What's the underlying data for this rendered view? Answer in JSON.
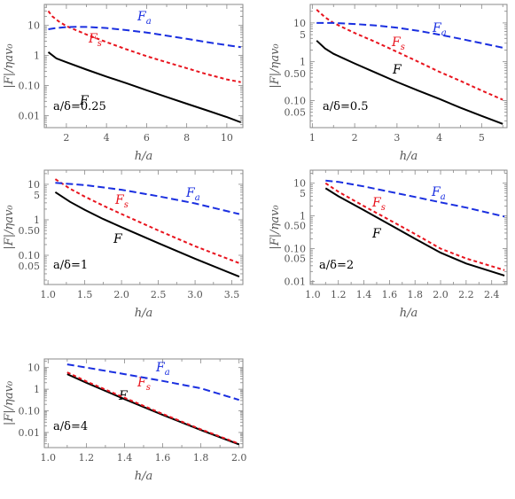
{
  "colors": {
    "F": "#000000",
    "Fs": "#e8141e",
    "Fa": "#1a2fe0",
    "axis": "#888888",
    "text": "#555555"
  },
  "common": {
    "ylabel": "|F|/ηav₀",
    "xlabel": "h/a"
  },
  "chart_data": [
    {
      "type": "line",
      "log_y": true,
      "param_label": "a/δ=0.25",
      "xlim": [
        0.9,
        10.8
      ],
      "ylim": [
        0.004,
        50
      ],
      "xticks": [
        2,
        4,
        6,
        8,
        10
      ],
      "xtick_labels": [
        "2",
        "4",
        "6",
        "8",
        "10"
      ],
      "yticks": [
        0.01,
        0.1,
        1,
        10
      ],
      "ytick_labels": [
        "0.01",
        "0.10",
        "1",
        "10"
      ],
      "series": [
        {
          "name": "F",
          "label": "F",
          "sub": "",
          "x": [
            1.1,
            1.5,
            2,
            3,
            4,
            5,
            6,
            7,
            8,
            9,
            10,
            10.7
          ],
          "y": [
            1.3,
            0.8,
            0.6,
            0.34,
            0.2,
            0.12,
            0.07,
            0.042,
            0.025,
            0.015,
            0.009,
            0.006
          ]
        },
        {
          "name": "Fs",
          "label": "F",
          "sub": "s",
          "x": [
            1.1,
            1.3,
            1.6,
            2,
            3,
            4,
            5,
            6,
            7,
            8,
            9,
            10,
            10.7
          ],
          "y": [
            30,
            20,
            14,
            9.5,
            5,
            2.8,
            1.6,
            0.95,
            0.6,
            0.38,
            0.24,
            0.16,
            0.13
          ]
        },
        {
          "name": "Fa",
          "label": "F",
          "sub": "a",
          "x": [
            1.1,
            1.5,
            2,
            2.5,
            3,
            4,
            5,
            6,
            7,
            8,
            9,
            10,
            10.7
          ],
          "y": [
            7.5,
            8.2,
            8.8,
            9.0,
            8.9,
            8.2,
            7,
            5.8,
            4.6,
            3.6,
            2.8,
            2.2,
            1.9
          ]
        }
      ]
    },
    {
      "type": "line",
      "log_y": true,
      "param_label": "a/δ=0.5",
      "xlim": [
        0.95,
        5.6
      ],
      "ylim": [
        0.02,
        30
      ],
      "xticks": [
        1,
        2,
        3,
        4,
        5
      ],
      "xtick_labels": [
        "1",
        "2",
        "3",
        "4",
        "5"
      ],
      "yticks": [
        0.05,
        0.1,
        0.5,
        1,
        5,
        10
      ],
      "ytick_labels": [
        "0.05",
        "0.10",
        "0.50",
        "1",
        "5",
        "10"
      ],
      "series": [
        {
          "name": "F",
          "label": "F",
          "sub": "",
          "x": [
            1.1,
            1.3,
            1.5,
            2,
            2.5,
            3,
            3.5,
            4,
            4.5,
            5,
            5.5
          ],
          "y": [
            3.5,
            2.2,
            1.6,
            0.9,
            0.52,
            0.3,
            0.18,
            0.11,
            0.065,
            0.04,
            0.025
          ]
        },
        {
          "name": "Fs",
          "label": "F",
          "sub": "s",
          "x": [
            1.1,
            1.3,
            1.5,
            2,
            2.5,
            3,
            3.5,
            4,
            4.5,
            5,
            5.5
          ],
          "y": [
            22,
            14,
            10,
            5.5,
            3.2,
            1.8,
            1.0,
            0.55,
            0.32,
            0.18,
            0.105
          ]
        },
        {
          "name": "Fa",
          "label": "F",
          "sub": "a",
          "x": [
            1.1,
            1.5,
            2,
            2.5,
            3,
            3.5,
            4,
            4.5,
            5,
            5.5
          ],
          "y": [
            10,
            10,
            9.4,
            8.6,
            7.5,
            6.3,
            5.0,
            3.9,
            3.0,
            2.3
          ]
        }
      ]
    },
    {
      "type": "line",
      "log_y": true,
      "param_label": "a/δ=1",
      "xlim": [
        0.95,
        3.65
      ],
      "ylim": [
        0.015,
        25
      ],
      "xticks": [
        1.0,
        1.5,
        2.0,
        2.5,
        3.0,
        3.5
      ],
      "xtick_labels": [
        "1.0",
        "1.5",
        "2.0",
        "2.5",
        "3.0",
        "3.5"
      ],
      "yticks": [
        0.05,
        0.1,
        0.5,
        1,
        5,
        10
      ],
      "ytick_labels": [
        "0.05",
        "0.10",
        "0.50",
        "1",
        "5",
        "10"
      ],
      "series": [
        {
          "name": "F",
          "label": "F",
          "sub": "",
          "x": [
            1.1,
            1.3,
            1.5,
            1.75,
            2,
            2.5,
            3,
            3.6
          ],
          "y": [
            6,
            3.2,
            1.9,
            1.05,
            0.62,
            0.22,
            0.08,
            0.025
          ]
        },
        {
          "name": "Fs",
          "label": "F",
          "sub": "s",
          "x": [
            1.1,
            1.3,
            1.5,
            1.75,
            2,
            2.5,
            3,
            3.6
          ],
          "y": [
            14,
            7.5,
            4.5,
            2.5,
            1.45,
            0.5,
            0.18,
            0.06
          ]
        },
        {
          "name": "Fa",
          "label": "F",
          "sub": "a",
          "x": [
            1.1,
            1.5,
            2,
            2.5,
            3,
            3.6
          ],
          "y": [
            11,
            9.5,
            7,
            4.6,
            2.9,
            1.45
          ]
        }
      ]
    },
    {
      "type": "line",
      "log_y": true,
      "param_label": "a/δ=2",
      "xlim": [
        0.98,
        2.52
      ],
      "ylim": [
        0.008,
        25
      ],
      "xticks": [
        1.0,
        1.2,
        1.4,
        1.6,
        1.8,
        2.0,
        2.2,
        2.4
      ],
      "xtick_labels": [
        "1.0",
        "1.2",
        "1.4",
        "1.6",
        "1.8",
        "2.0",
        "2.2",
        "2.4"
      ],
      "yticks": [
        0.01,
        0.05,
        0.1,
        0.5,
        1,
        5,
        10
      ],
      "ytick_labels": [
        "0.01",
        "0.05",
        "0.10",
        "0.50",
        "1",
        "5",
        "10"
      ],
      "series": [
        {
          "name": "F",
          "label": "F",
          "sub": "",
          "x": [
            1.1,
            1.2,
            1.4,
            1.6,
            1.8,
            2.0,
            2.2,
            2.5
          ],
          "y": [
            7,
            4,
            1.5,
            0.55,
            0.2,
            0.075,
            0.035,
            0.015
          ]
        },
        {
          "name": "Fs",
          "label": "F",
          "sub": "s",
          "x": [
            1.1,
            1.2,
            1.4,
            1.6,
            1.8,
            2.0,
            2.2,
            2.5
          ],
          "y": [
            10,
            5.5,
            2.0,
            0.75,
            0.28,
            0.1,
            0.05,
            0.022
          ]
        },
        {
          "name": "Fa",
          "label": "F",
          "sub": "a",
          "x": [
            1.1,
            1.2,
            1.4,
            1.6,
            1.8,
            2.0,
            2.2,
            2.5
          ],
          "y": [
            12,
            11,
            8,
            5.5,
            3.8,
            2.6,
            1.8,
            0.95
          ]
        }
      ]
    },
    {
      "type": "line",
      "log_y": true,
      "param_label": "a/δ=4",
      "xlim": [
        0.98,
        2.02
      ],
      "ylim": [
        0.002,
        25
      ],
      "xticks": [
        1.0,
        1.2,
        1.4,
        1.6,
        1.8,
        2.0
      ],
      "xtick_labels": [
        "1.0",
        "1.2",
        "1.4",
        "1.6",
        "1.8",
        "2.0"
      ],
      "yticks": [
        0.01,
        0.1,
        1,
        10
      ],
      "ytick_labels": [
        "0.01",
        "0.10",
        "1",
        "10"
      ],
      "series": [
        {
          "name": "F",
          "label": "F",
          "sub": "",
          "x": [
            1.1,
            1.2,
            1.4,
            1.6,
            1.8,
            2.0
          ],
          "y": [
            5,
            2.0,
            0.35,
            0.065,
            0.013,
            0.0028
          ]
        },
        {
          "name": "Fs",
          "label": "F",
          "sub": "s",
          "x": [
            1.1,
            1.2,
            1.4,
            1.6,
            1.8,
            2.0
          ],
          "y": [
            6,
            2.3,
            0.4,
            0.072,
            0.014,
            0.003
          ]
        },
        {
          "name": "Fa",
          "label": "F",
          "sub": "a",
          "x": [
            1.1,
            1.2,
            1.4,
            1.6,
            1.8,
            2.0
          ],
          "y": [
            14,
            10,
            5,
            2.4,
            1.1,
            0.32
          ]
        }
      ]
    }
  ]
}
